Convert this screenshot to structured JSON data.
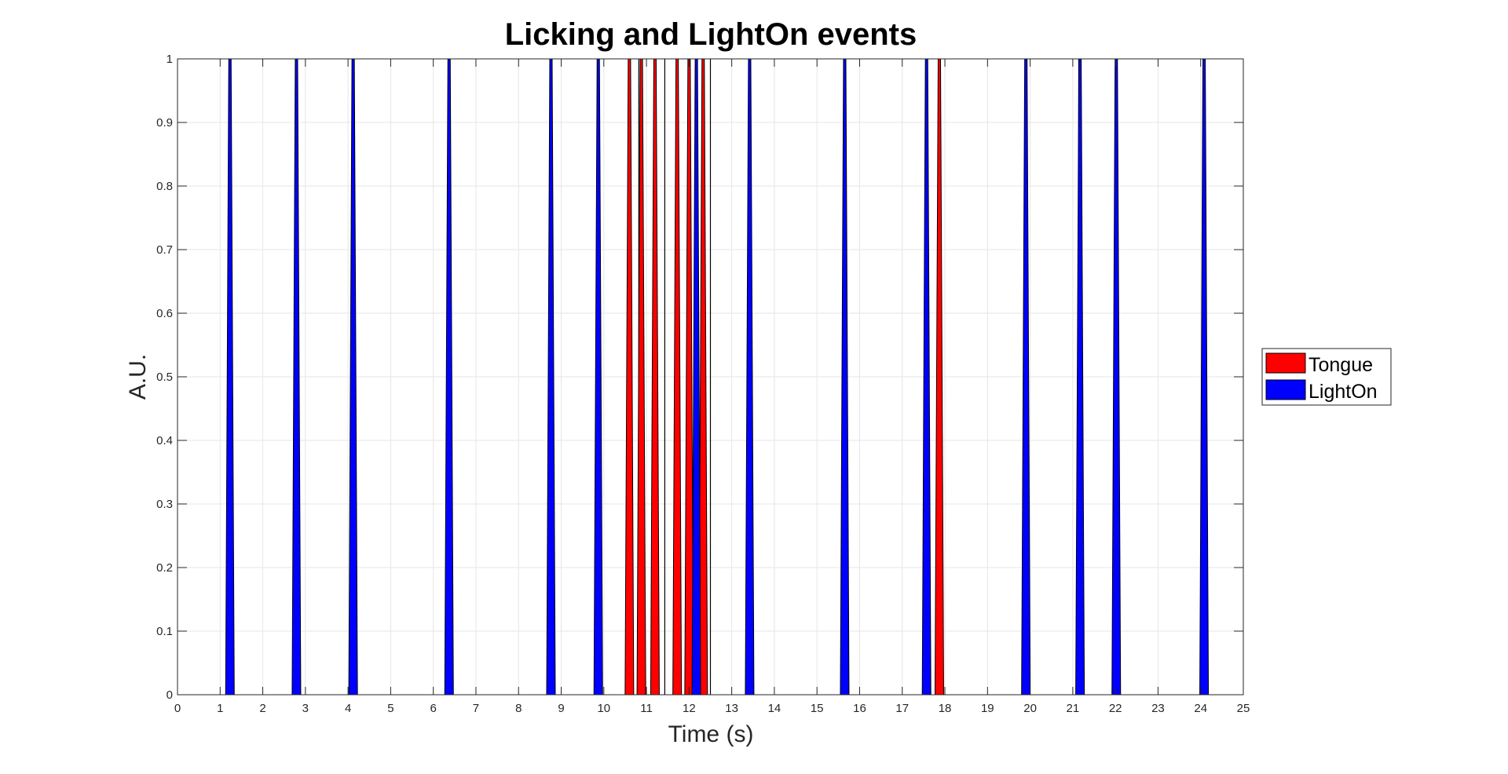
{
  "chart_data": {
    "type": "bar",
    "title": "Licking and LightOn events",
    "xlabel": "Time (s)",
    "ylabel": "A.U.",
    "xlim": [
      0,
      25
    ],
    "ylim": [
      0,
      1
    ],
    "x_ticks": [
      "0",
      "1",
      "2",
      "3",
      "4",
      "5",
      "6",
      "7",
      "8",
      "9",
      "10",
      "11",
      "12",
      "13",
      "14",
      "15",
      "16",
      "17",
      "18",
      "19",
      "20",
      "21",
      "22",
      "23",
      "24",
      "25"
    ],
    "y_ticks": [
      "0",
      "0.1",
      "0.2",
      "0.3",
      "0.4",
      "0.5",
      "0.6",
      "0.7",
      "0.8",
      "0.9",
      "1"
    ],
    "grid": true,
    "legend_position": "outside-right",
    "series": [
      {
        "name": "Tongue",
        "color": "#ff0000",
        "event_times": [
          10.6,
          10.88,
          11.2,
          11.72,
          12.0,
          12.33,
          17.87
        ]
      },
      {
        "name": "LightOn",
        "color": "#0000ff",
        "event_times": [
          1.23,
          2.79,
          4.12,
          6.37,
          8.76,
          9.87,
          12.17,
          13.42,
          15.65,
          17.57,
          19.9,
          21.17,
          22.02,
          24.08
        ]
      }
    ],
    "unfilled_event_lines": [
      10.82,
      11.43,
      12.5,
      21.14
    ]
  }
}
